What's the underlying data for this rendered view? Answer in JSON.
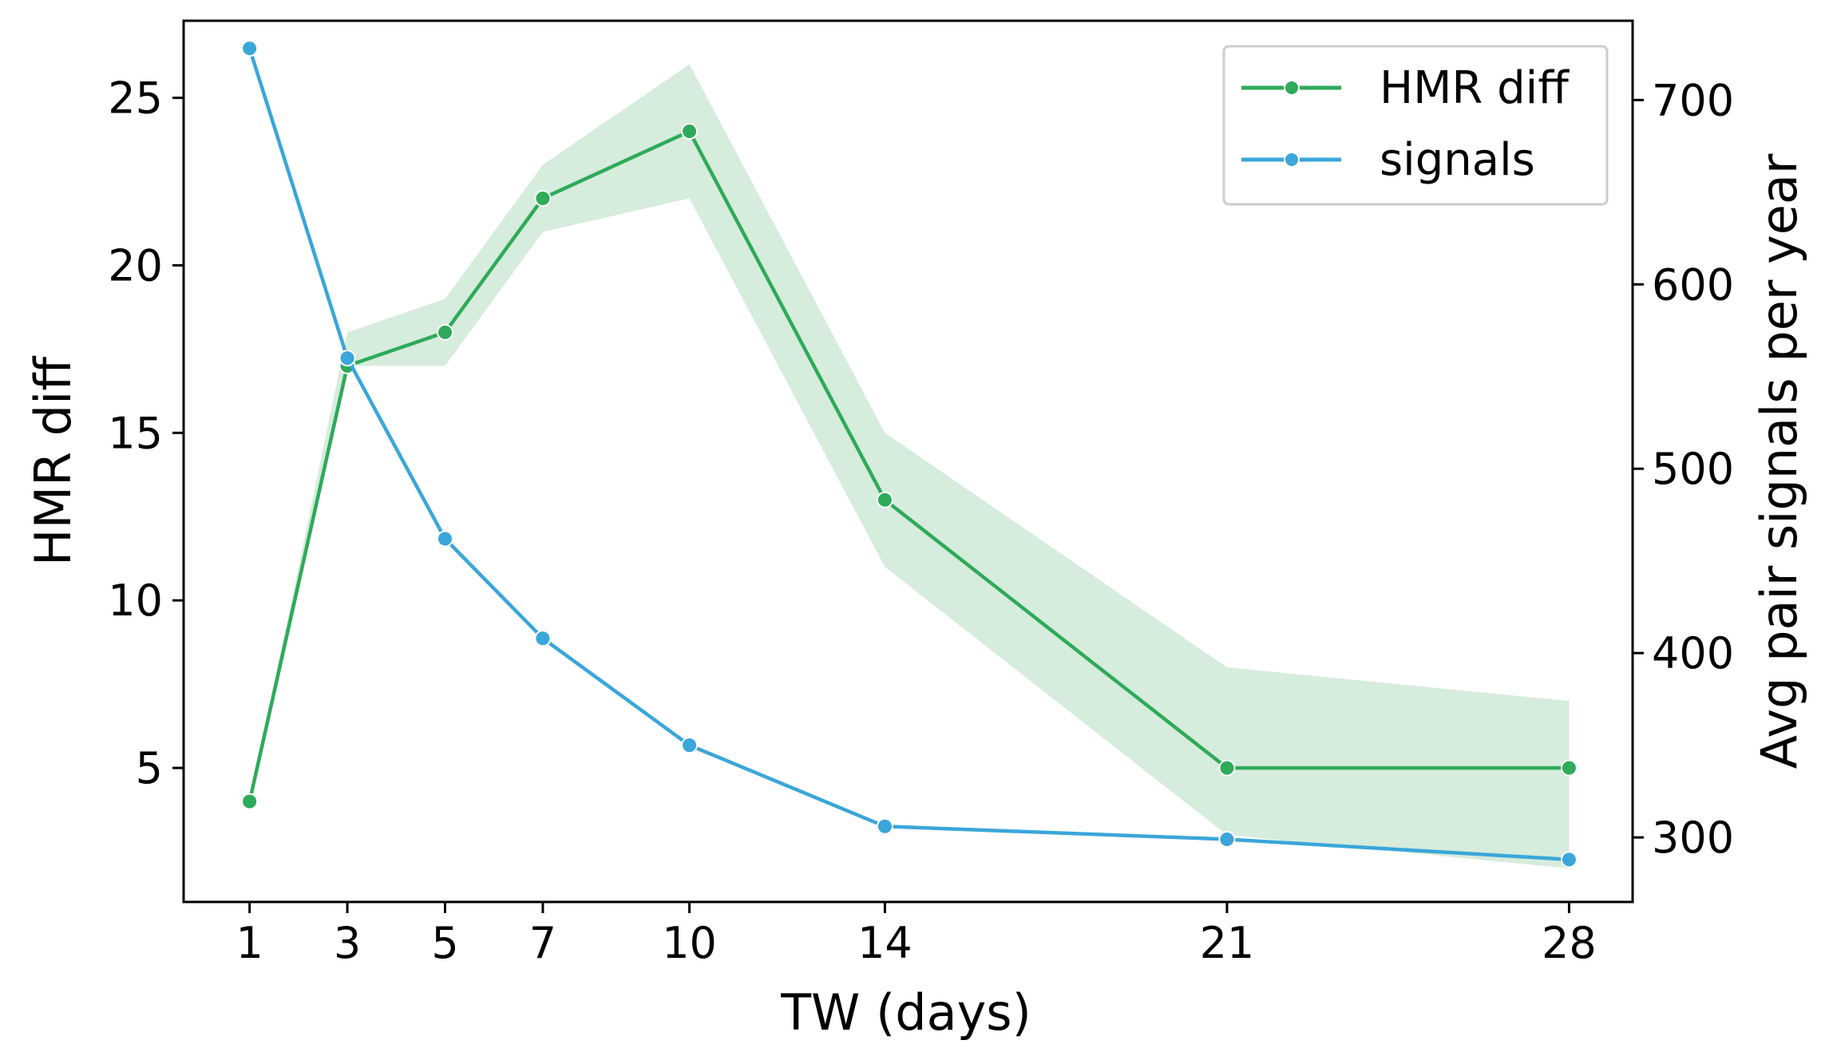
{
  "chart_data": {
    "type": "line",
    "title": "",
    "xlabel": "TW (days)",
    "ylabel": "HMR diff",
    "y2label": "Avg pair signals per year",
    "x": [
      1,
      3,
      5,
      7,
      10,
      14,
      21,
      28
    ],
    "x_ticks": [
      "1",
      "3",
      "5",
      "7",
      "10",
      "14",
      "21",
      "28"
    ],
    "xlim": [
      -0.35,
      29.3
    ],
    "ylim": [
      1.0,
      27.3
    ],
    "y_ticks": [
      "5",
      "10",
      "15",
      "20",
      "25"
    ],
    "y2lim": [
      265,
      743
    ],
    "y2_ticks": [
      "300",
      "400",
      "500",
      "600",
      "700"
    ],
    "grid": false,
    "legend_position": "top-right",
    "series": [
      {
        "name": "HMR diff",
        "axis": "left",
        "color": "#2eaa5a",
        "band_color": "#d6ecdc",
        "values": [
          4,
          17,
          18,
          22,
          24,
          13,
          5,
          5
        ],
        "band_upper": [
          4,
          18,
          19,
          23,
          26,
          15,
          8,
          7
        ],
        "band_lower": [
          4,
          17,
          17,
          21,
          22,
          11,
          3,
          2
        ]
      },
      {
        "name": "signals",
        "axis": "right",
        "color": "#3aa6d9",
        "values": [
          728,
          560,
          462,
          408,
          350,
          306,
          299,
          288
        ]
      }
    ]
  }
}
